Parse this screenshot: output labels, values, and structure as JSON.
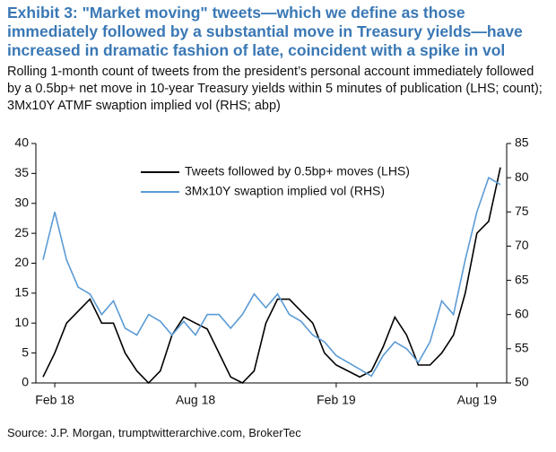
{
  "chart_data": {
    "type": "line",
    "title": "Exhibit 3: \"Market moving\" tweets—which we define as those immediately followed by a substantial move in Treasury yields—have increased in dramatic fashion of late, coincident with a spike in vol",
    "subtitle": "Rolling 1-month count of tweets from the president’s personal account immediately followed by a 0.5bp+ net move in 10-year Treasury yields within 5 minutes of publication (LHS; count); 3Mx10Y ATMF swaption implied vol (RHS; abp)",
    "source": "Source: J.P. Morgan, trumptwitterarchive.com, BrokerTec",
    "categories": [
      null,
      "Feb 18",
      null,
      null,
      null,
      null,
      null,
      null,
      null,
      null,
      null,
      null,
      null,
      "Aug 18",
      null,
      null,
      null,
      null,
      null,
      null,
      null,
      null,
      null,
      null,
      null,
      "Feb 19",
      null,
      null,
      null,
      null,
      null,
      null,
      null,
      null,
      null,
      null,
      null,
      "Aug 19",
      null,
      null
    ],
    "series": [
      {
        "name": "Tweets followed by 0.5bp+ moves (LHS)",
        "color": "#000000",
        "axis": "y",
        "values": [
          1,
          5,
          10,
          12,
          14,
          10,
          10,
          5,
          2,
          0,
          2,
          8,
          11,
          10,
          9,
          5,
          1,
          0,
          2,
          10,
          14,
          14,
          12,
          10,
          5,
          3,
          2,
          1,
          2,
          6,
          11,
          8,
          3,
          3,
          5,
          8,
          15,
          25,
          27,
          36
        ]
      },
      {
        "name": "3Mx10Y swaption implied vol (RHS)",
        "color": "#5b9bd5",
        "axis": "y2",
        "values": [
          68,
          75,
          68,
          64,
          63,
          60,
          62,
          58,
          57,
          60,
          59,
          57,
          59,
          57,
          60,
          60,
          58,
          60,
          63,
          61,
          63,
          60,
          59,
          57,
          56,
          54,
          53,
          52,
          51,
          54,
          56,
          55,
          53,
          56,
          62,
          60,
          68,
          75,
          80,
          79
        ]
      }
    ],
    "ylim": [
      0,
      40
    ],
    "yticks": [
      0,
      5,
      10,
      15,
      20,
      25,
      30,
      35,
      40
    ],
    "y2lim": [
      50,
      85
    ],
    "y2ticks": [
      50,
      55,
      60,
      65,
      70,
      75,
      80,
      85
    ]
  }
}
